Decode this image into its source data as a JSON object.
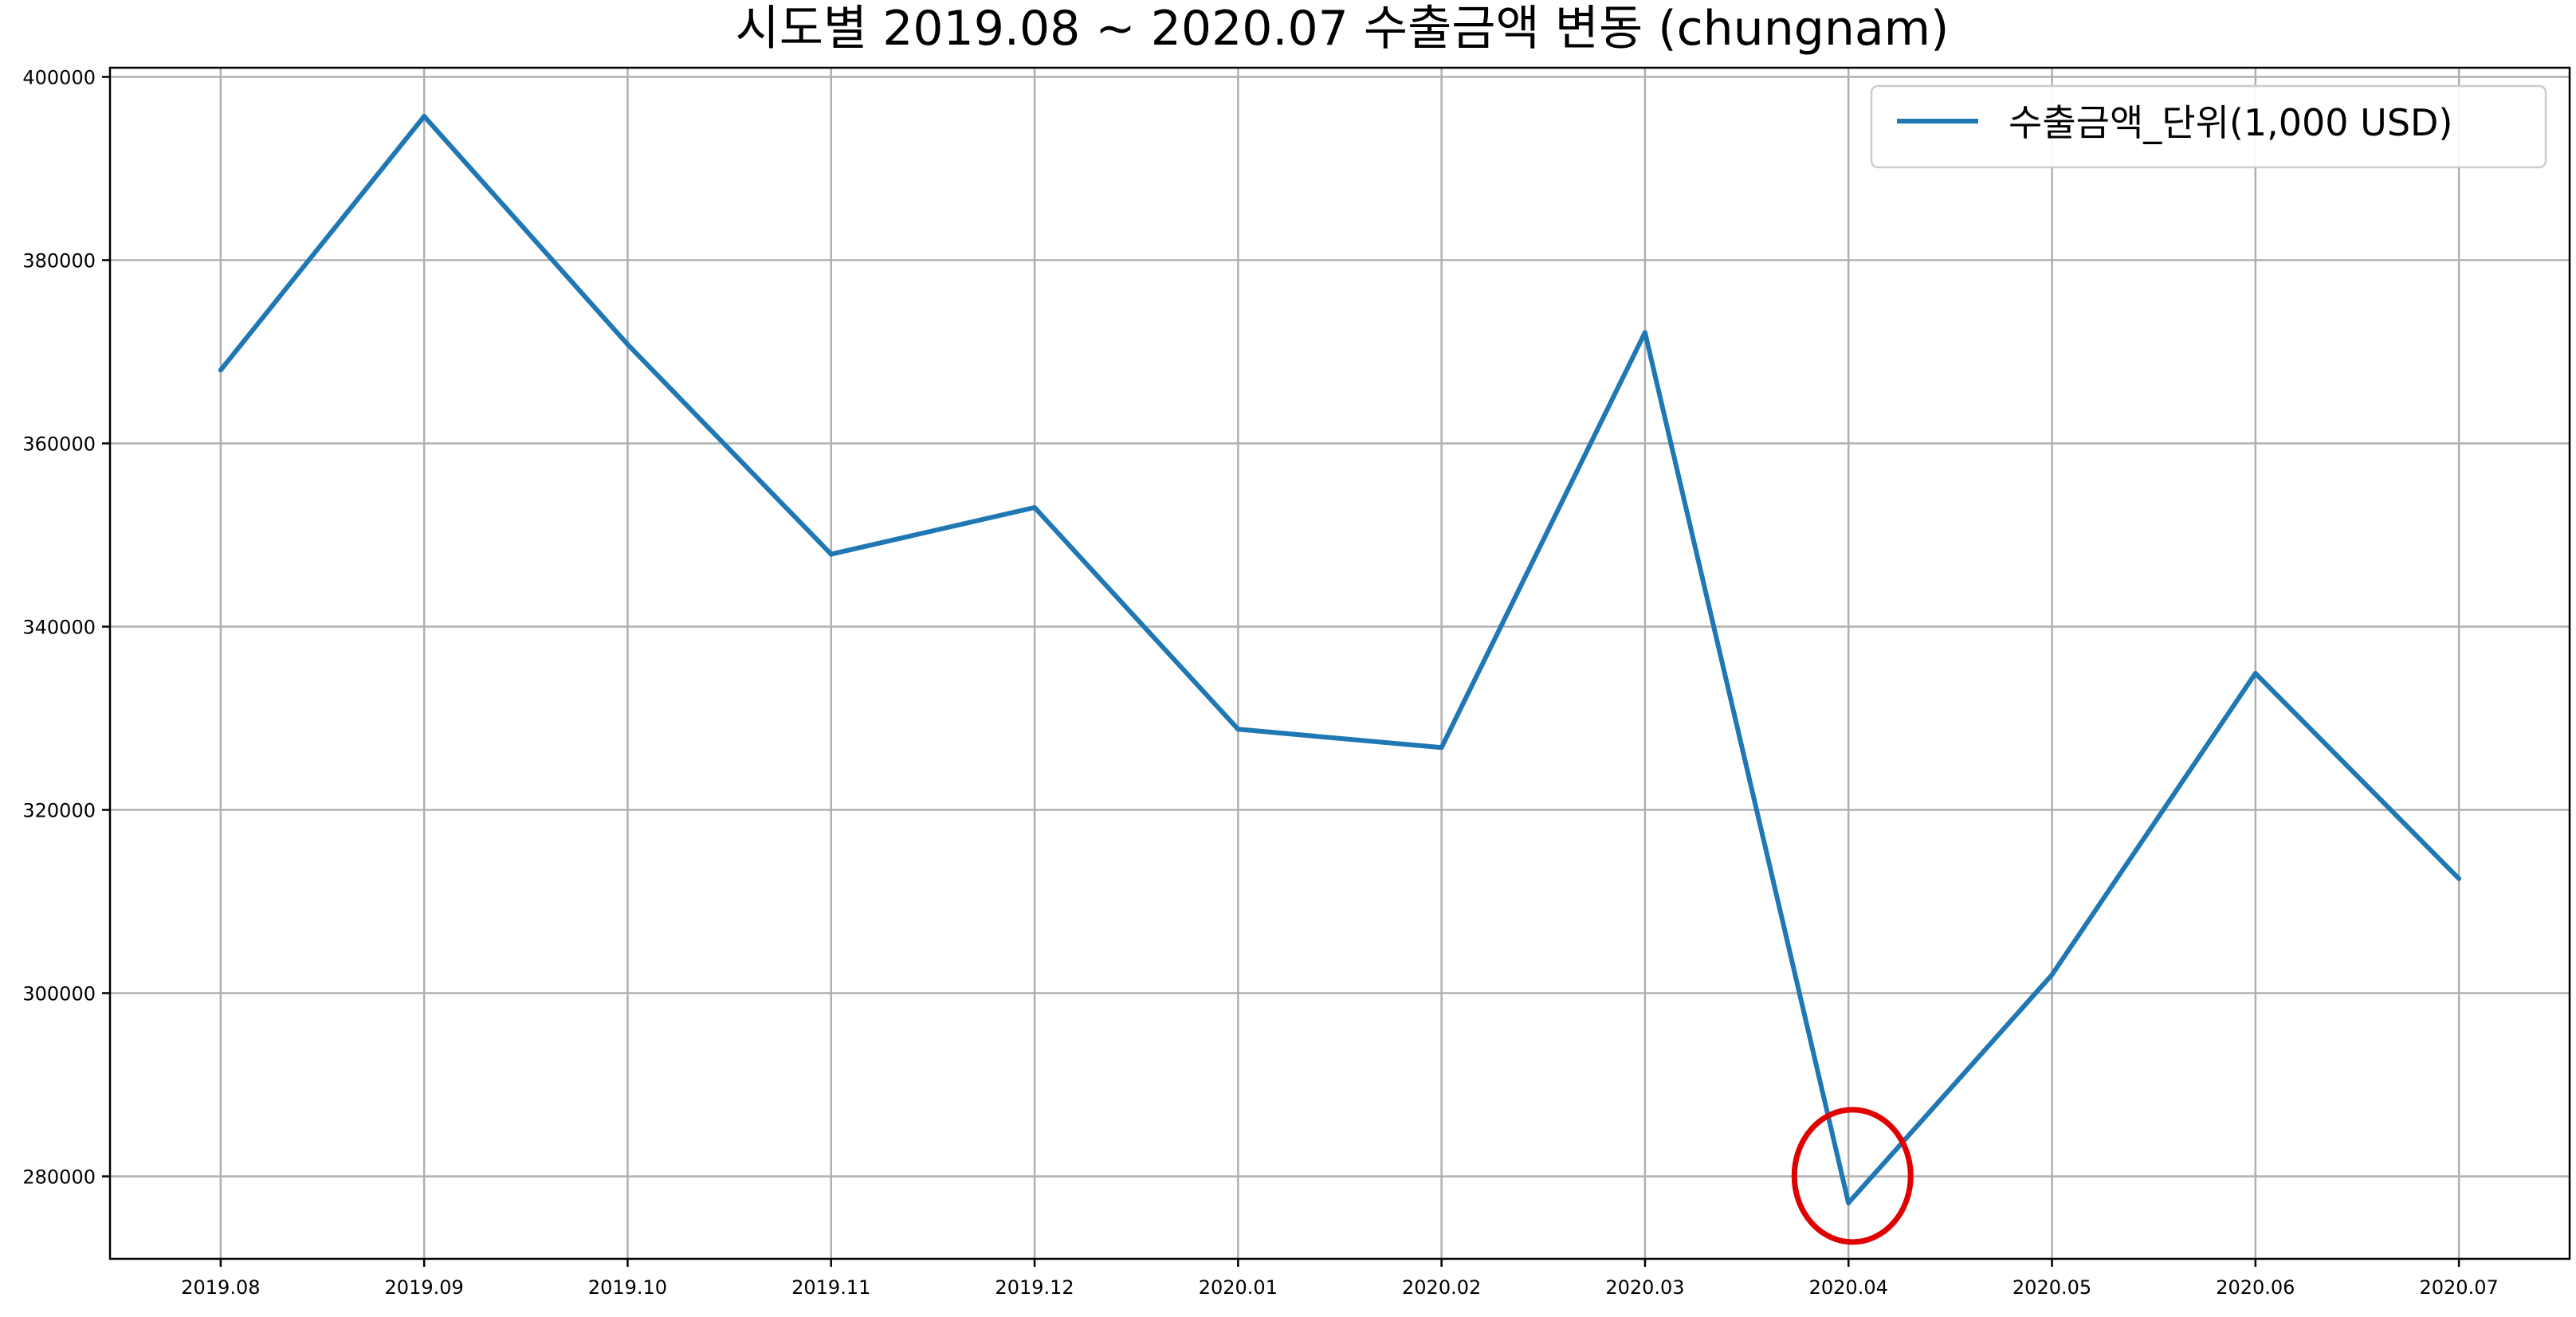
{
  "chart_data": {
    "type": "line",
    "title": "시도별 2019.08 ~ 2020.07 수출금액 변동 (chungnam)",
    "xlabel": "",
    "ylabel": "",
    "categories": [
      "2019.08",
      "2019.09",
      "2019.10",
      "2019.11",
      "2019.12",
      "2020.01",
      "2020.02",
      "2020.03",
      "2020.04",
      "2020.05",
      "2020.06",
      "2020.07"
    ],
    "series": [
      {
        "name": "수출금액_단위(1,000 USD)",
        "color": "#1f77b4",
        "values": [
          368000,
          395700,
          370800,
          347900,
          353000,
          328800,
          326800,
          372100,
          277100,
          302000,
          334900,
          312500
        ]
      }
    ],
    "ylim": [
      271000,
      401000
    ],
    "yticks": [
      280000,
      300000,
      320000,
      340000,
      360000,
      380000,
      400000
    ],
    "ytick_labels": [
      "280000",
      "300000",
      "320000",
      "340000",
      "360000",
      "380000",
      "400000"
    ],
    "grid": true,
    "legend_position": "top-right",
    "annotation": {
      "type": "circle",
      "category": "2020.04",
      "color": "#e00000"
    }
  }
}
